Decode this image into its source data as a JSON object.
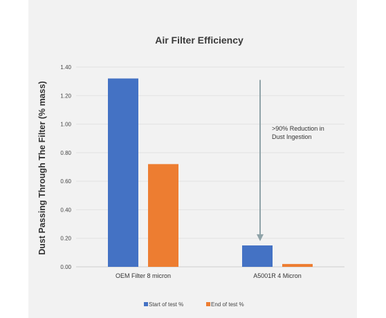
{
  "chart_data": {
    "type": "bar",
    "title": "Air Filter Efficiency",
    "xlabel": "",
    "ylabel": "Dust Passing Through The Filter (% mass)",
    "categories": [
      "OEM Filter 8 micron",
      "A5001R 4 Micron"
    ],
    "series": [
      {
        "name": "Start of test %",
        "color": "#4472c4",
        "values": [
          1.32,
          0.15
        ]
      },
      {
        "name": "End of test %",
        "color": "#ed7d31",
        "values": [
          0.72,
          0.02
        ]
      }
    ],
    "ylim": [
      0,
      1.4
    ],
    "yticks": [
      "0.00",
      "0.20",
      "0.40",
      "0.60",
      "0.80",
      "1.00",
      "1.20",
      "1.40"
    ],
    "ytick_values": [
      0,
      0.2,
      0.4,
      0.6,
      0.8,
      1.0,
      1.2,
      1.4
    ],
    "annotation": {
      "lines": [
        ">90% Reduction in",
        "Dust Ingestion"
      ],
      "arrow_from": 1.31,
      "arrow_to": 0.18
    },
    "legend_position": "bottom",
    "grid": true
  }
}
